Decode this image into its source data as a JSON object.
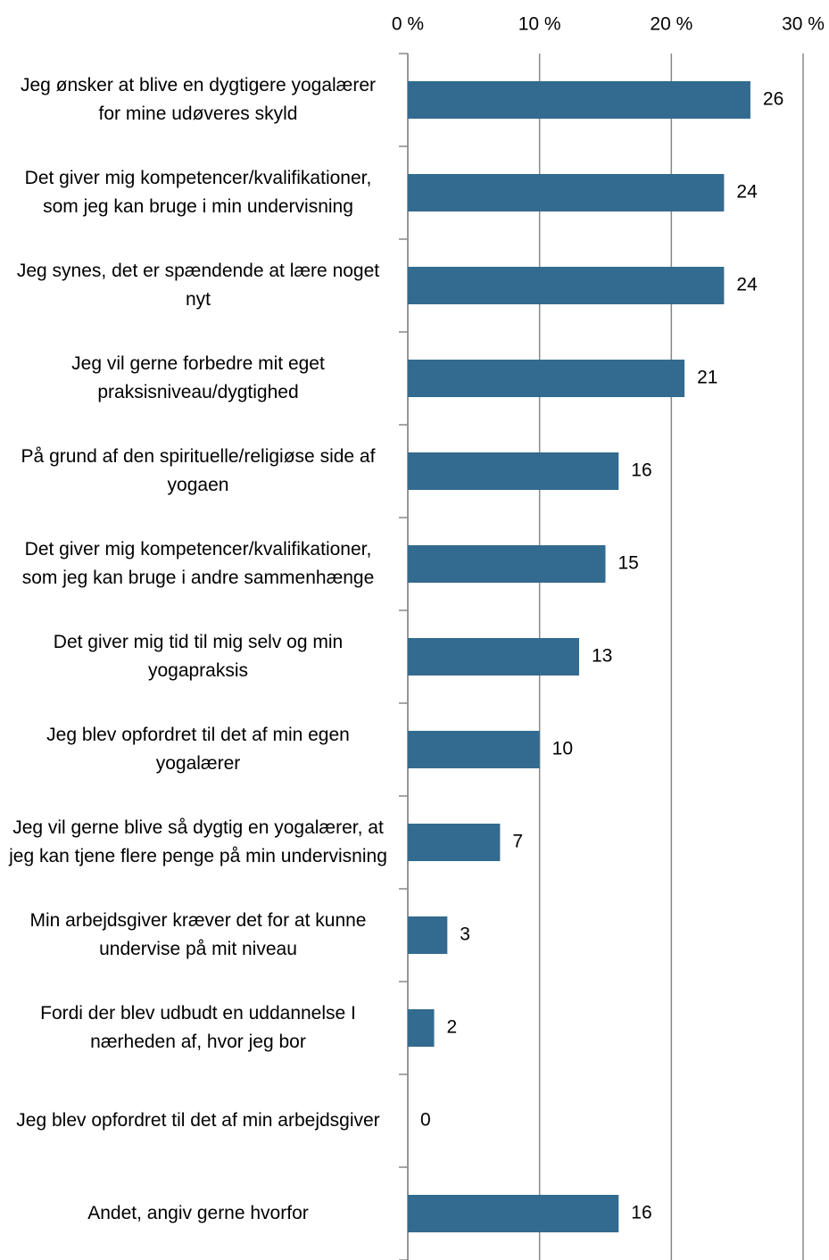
{
  "chart_data": {
    "type": "hbar",
    "categories": [
      "Jeg ønsker at blive en dygtigere yogalærer for mine udøveres skyld",
      "Det giver mig kompetencer/kvalifikationer, som jeg kan bruge i min undervisning",
      "Jeg synes, det er spændende at lære noget nyt",
      "Jeg vil gerne forbedre mit eget praksisniveau/dygtighed",
      "På grund af den spirituelle/religiøse side af yogaen",
      "Det giver mig kompetencer/kvalifikationer, som jeg kan bruge i andre sammenhænge",
      "Det giver mig tid til mig selv og min yogapraksis",
      "Jeg blev opfordret til det af min egen yogalærer",
      "Jeg vil gerne blive så dygtig en yogalærer, at jeg kan tjene flere penge på min undervisning",
      "Min arbejdsgiver kræver det for at kunne undervise på mit niveau",
      "Fordi der blev udbudt en uddannelse I nærheden af, hvor jeg bor",
      "Jeg blev opfordret til det af min arbejdsgiver",
      "Andet, angiv gerne hvorfor"
    ],
    "values": [
      26,
      24,
      24,
      21,
      16,
      15,
      13,
      10,
      7,
      3,
      2,
      0,
      16
    ],
    "color": "#336a90",
    "xlim": [
      0,
      30
    ],
    "xticks": [
      {
        "value": 0,
        "label": "0 %"
      },
      {
        "value": 10,
        "label": "10 %"
      },
      {
        "value": 20,
        "label": "20 %"
      },
      {
        "value": 30,
        "label": "30 %"
      }
    ],
    "grid": true
  }
}
